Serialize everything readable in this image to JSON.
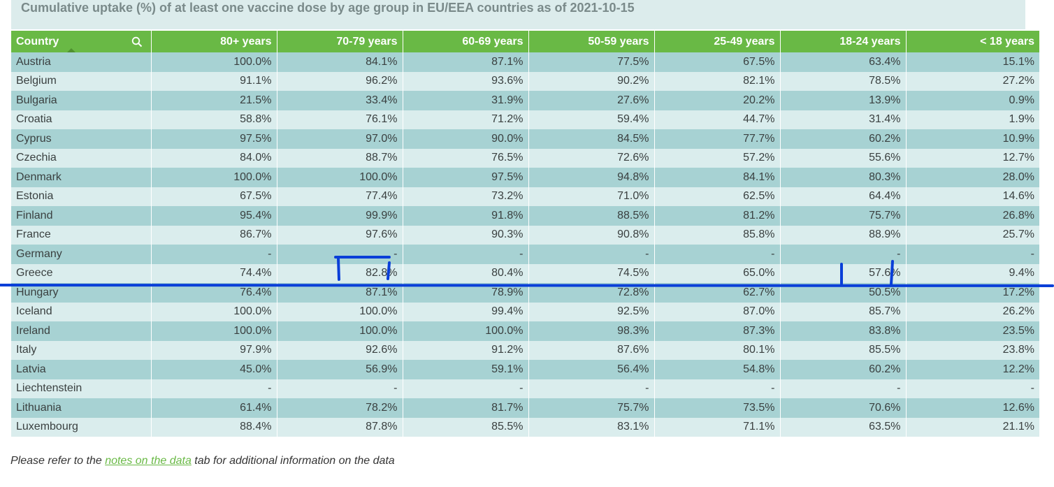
{
  "title": "Cumulative uptake (%) of at least one vaccine dose by age group in EU/EEA countries as of 2021-10-15",
  "columns": [
    "Country",
    "80+ years",
    "70-79 years",
    "60-69 years",
    "50-59 years",
    "25-49 years",
    "18-24 years",
    "< 18 years"
  ],
  "rows": [
    [
      "Austria",
      "100.0%",
      "84.1%",
      "87.1%",
      "77.5%",
      "67.5%",
      "63.4%",
      "15.1%"
    ],
    [
      "Belgium",
      "91.1%",
      "96.2%",
      "93.6%",
      "90.2%",
      "82.1%",
      "78.5%",
      "27.2%"
    ],
    [
      "Bulgaria",
      "21.5%",
      "33.4%",
      "31.9%",
      "27.6%",
      "20.2%",
      "13.9%",
      "0.9%"
    ],
    [
      "Croatia",
      "58.8%",
      "76.1%",
      "71.2%",
      "59.4%",
      "44.7%",
      "31.4%",
      "1.9%"
    ],
    [
      "Cyprus",
      "97.5%",
      "97.0%",
      "90.0%",
      "84.5%",
      "77.7%",
      "60.2%",
      "10.9%"
    ],
    [
      "Czechia",
      "84.0%",
      "88.7%",
      "76.5%",
      "72.6%",
      "57.2%",
      "55.6%",
      "12.7%"
    ],
    [
      "Denmark",
      "100.0%",
      "100.0%",
      "97.5%",
      "94.8%",
      "84.1%",
      "80.3%",
      "28.0%"
    ],
    [
      "Estonia",
      "67.5%",
      "77.4%",
      "73.2%",
      "71.0%",
      "62.5%",
      "64.4%",
      "14.6%"
    ],
    [
      "Finland",
      "95.4%",
      "99.9%",
      "91.8%",
      "88.5%",
      "81.2%",
      "75.7%",
      "26.8%"
    ],
    [
      "France",
      "86.7%",
      "97.6%",
      "90.3%",
      "90.8%",
      "85.8%",
      "88.9%",
      "25.7%"
    ],
    [
      "Germany",
      "-",
      "-",
      "-",
      "-",
      "-",
      "-",
      "-"
    ],
    [
      "Greece",
      "74.4%",
      "82.8%",
      "80.4%",
      "74.5%",
      "65.0%",
      "57.6%",
      "9.4%"
    ],
    [
      "Hungary",
      "76.4%",
      "87.1%",
      "78.9%",
      "72.8%",
      "62.7%",
      "50.5%",
      "17.2%"
    ],
    [
      "Iceland",
      "100.0%",
      "100.0%",
      "99.4%",
      "92.5%",
      "87.0%",
      "85.7%",
      "26.2%"
    ],
    [
      "Ireland",
      "100.0%",
      "100.0%",
      "100.0%",
      "98.3%",
      "87.3%",
      "83.8%",
      "23.5%"
    ],
    [
      "Italy",
      "97.9%",
      "92.6%",
      "91.2%",
      "87.6%",
      "80.1%",
      "85.5%",
      "23.8%"
    ],
    [
      "Latvia",
      "45.0%",
      "56.9%",
      "59.1%",
      "56.4%",
      "54.8%",
      "60.2%",
      "12.2%"
    ],
    [
      "Liechtenstein",
      "-",
      "-",
      "-",
      "-",
      "-",
      "-",
      "-"
    ],
    [
      "Lithuania",
      "61.4%",
      "78.2%",
      "81.7%",
      "75.7%",
      "73.5%",
      "70.6%",
      "12.6%"
    ],
    [
      "Luxembourg",
      "88.4%",
      "87.8%",
      "85.5%",
      "83.1%",
      "71.1%",
      "63.5%",
      "21.1%"
    ]
  ],
  "note": {
    "prefix": "Please refer to the ",
    "link": "notes on the data",
    "suffix": " tab for additional information on the data"
  },
  "colors": {
    "header": "#69b945",
    "row_odd": "#a7d2d3",
    "row_even": "#daeded",
    "annotation": "#0a3fd8"
  }
}
